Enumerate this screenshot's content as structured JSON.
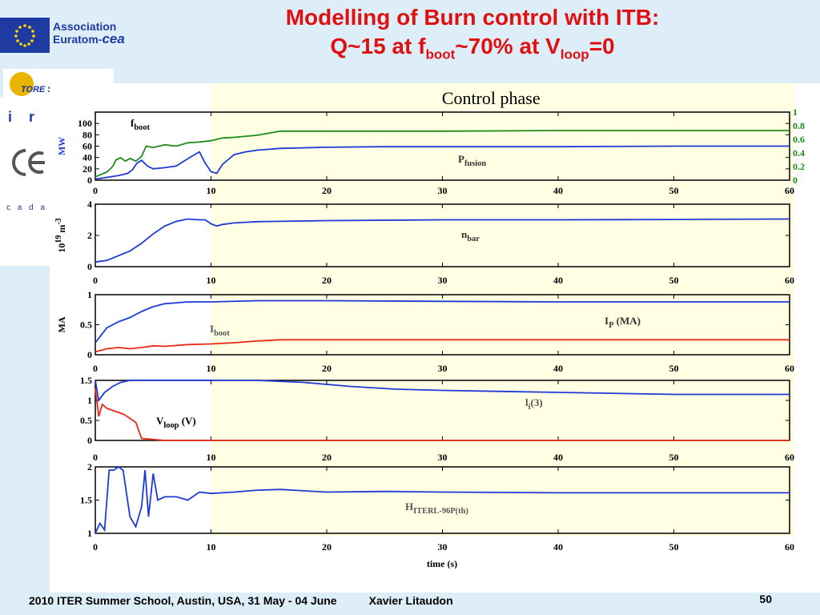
{
  "header": {
    "title_line1": "Modelling of Burn control with ITB:",
    "title_line2_a": "Q~15 at f",
    "title_line2_sub1": "boot",
    "title_line2_b": "~70%  at V",
    "title_line2_sub2": "loop",
    "title_line2_c": "=0"
  },
  "logos": {
    "association": "Association",
    "euratom": "Euratom-",
    "cea": "cea",
    "tore_supra": "TORE SUPRA",
    "irfm": "i r f",
    "cadarache": "c a d a r a"
  },
  "footer": {
    "event": "2010 ITER Summer School, Austin, USA,  31 May - 04 June",
    "author": "Xavier Litaudon",
    "slide_number": "50"
  },
  "colors": {
    "blue": "#1f3ad6",
    "green": "#1e8a1e",
    "red": "#e82a14",
    "control_band": "#ffffe4",
    "title": "#e01010"
  },
  "chart_data": {
    "type": "line",
    "annotation": "Control phase",
    "control_phase_start": 10,
    "xlabel": "time (s)",
    "xlim": [
      0,
      60
    ],
    "xticks": [
      0,
      10,
      20,
      30,
      40,
      50,
      60
    ],
    "panels": [
      {
        "ylabel": "MW",
        "ylim": [
          0,
          120
        ],
        "yticks": [
          0,
          20,
          40,
          60,
          80,
          100
        ],
        "ylim_right": [
          0,
          1
        ],
        "yticks_right": [
          "0",
          "0.2",
          "0.4",
          "0.6",
          "0.8",
          "1"
        ],
        "series": [
          {
            "name": "f",
            "name_sub": "boot",
            "color": "green",
            "axis": "right",
            "x": [
              0,
              1,
              1.5,
              1.8,
              2.2,
              2.6,
              3,
              3.5,
              4,
              4.4,
              5,
              6,
              7,
              8,
              9,
              10,
              11,
              12,
              14,
              16,
              20,
              30,
              40,
              50,
              60
            ],
            "y": [
              0.05,
              0.12,
              0.2,
              0.3,
              0.33,
              0.28,
              0.32,
              0.28,
              0.35,
              0.5,
              0.48,
              0.52,
              0.5,
              0.55,
              0.56,
              0.58,
              0.62,
              0.63,
              0.66,
              0.72,
              0.72,
              0.72,
              0.73,
              0.73,
              0.73
            ]
          },
          {
            "name": "P",
            "name_sub": "fusion",
            "color": "blue",
            "axis": "left",
            "x": [
              0,
              1,
              2,
              2.8,
              3.2,
              3.6,
              4,
              4.5,
              5,
              6,
              7,
              8,
              9,
              9.5,
              10,
              10.5,
              11,
              12,
              13,
              14,
              16,
              18,
              20,
              25,
              30,
              40,
              50,
              60
            ],
            "y": [
              2,
              5,
              8,
              12,
              18,
              30,
              35,
              25,
              20,
              22,
              25,
              38,
              50,
              30,
              15,
              12,
              28,
              45,
              50,
              53,
              56,
              57,
              58,
              59,
              59,
              59,
              60,
              60
            ]
          }
        ]
      },
      {
        "ylabel": "10",
        "ylabel_sup": "19",
        "ylabel_tail": " m",
        "ylabel_sup2": "-3",
        "ylim": [
          0,
          4
        ],
        "yticks": [
          0,
          2,
          4
        ],
        "series": [
          {
            "name": "n",
            "name_sub": "bar",
            "color": "blue",
            "x": [
              0,
              1,
              2,
              3,
              4,
              5,
              6,
              7,
              8,
              9,
              9.5,
              10,
              10.5,
              11,
              12,
              14,
              16,
              20,
              30,
              40,
              50,
              60
            ],
            "y": [
              0.3,
              0.4,
              0.7,
              1.0,
              1.5,
              2.1,
              2.6,
              2.9,
              3.05,
              3.0,
              3.0,
              2.75,
              2.6,
              2.7,
              2.8,
              2.88,
              2.9,
              2.95,
              3.0,
              3.0,
              3.02,
              3.05
            ]
          }
        ]
      },
      {
        "ylabel": "MA",
        "ylim": [
          0,
          1
        ],
        "yticks": [
          0,
          0.5,
          1
        ],
        "series": [
          {
            "name": "I",
            "name_sub": "P",
            "name_tail": " (MA)",
            "color": "blue",
            "x": [
              0,
              1,
              2,
              3,
              4,
              5,
              6,
              8,
              10,
              14,
              20,
              30,
              40,
              50,
              60
            ],
            "y": [
              0.2,
              0.45,
              0.55,
              0.62,
              0.72,
              0.8,
              0.85,
              0.88,
              0.88,
              0.9,
              0.9,
              0.89,
              0.88,
              0.88,
              0.88
            ]
          },
          {
            "name": "I",
            "name_sub": "boot",
            "color": "red",
            "x": [
              0,
              1,
              2,
              3,
              4,
              5,
              6,
              8,
              10,
              12,
              14,
              16,
              20,
              30,
              40,
              50,
              60
            ],
            "y": [
              0.05,
              0.1,
              0.12,
              0.1,
              0.12,
              0.15,
              0.14,
              0.17,
              0.18,
              0.2,
              0.23,
              0.25,
              0.25,
              0.25,
              0.25,
              0.25,
              0.25
            ]
          }
        ]
      },
      {
        "ylim": [
          0,
          1.5
        ],
        "yticks": [
          0,
          0.5,
          1,
          1.5
        ],
        "series": [
          {
            "name": "l",
            "name_sub": "i",
            "name_tail": "(3)",
            "color": "blue",
            "x": [
              0,
              0.3,
              0.8,
              1.5,
              2.2,
              3,
              10,
              14,
              18,
              22,
              26,
              30,
              40,
              50,
              60
            ],
            "y": [
              1.5,
              1.0,
              1.2,
              1.35,
              1.45,
              1.5,
              1.5,
              1.5,
              1.45,
              1.35,
              1.28,
              1.25,
              1.2,
              1.15,
              1.15
            ]
          },
          {
            "name": "V",
            "name_sub": "loop",
            "name_tail": " (V)",
            "color": "red",
            "x": [
              0,
              0.3,
              0.6,
              1,
              1.5,
              2,
              2.5,
              3,
              3.5,
              4,
              6,
              10,
              20,
              30,
              40,
              50,
              60
            ],
            "y": [
              1.3,
              0.6,
              0.9,
              0.8,
              0.75,
              0.7,
              0.65,
              0.55,
              0.45,
              0.05,
              0,
              0,
              0,
              0,
              0,
              0,
              0
            ]
          }
        ]
      },
      {
        "ylim": [
          1,
          2
        ],
        "yticks": [
          1,
          1.5,
          2
        ],
        "series": [
          {
            "name": "H",
            "name_sub": "ITERL-96P(th)",
            "color": "blue",
            "x": [
              0,
              0.4,
              0.8,
              1.2,
              1.6,
              2,
              2.4,
              3,
              3.5,
              4,
              4.3,
              4.6,
              5,
              5.4,
              6,
              7,
              8,
              9,
              10,
              12,
              14,
              16,
              18,
              20,
              25,
              30,
              40,
              50,
              60
            ],
            "y": [
              1.0,
              1.15,
              1.05,
              1.95,
              1.95,
              2.0,
              1.95,
              1.25,
              1.1,
              1.4,
              1.95,
              1.25,
              1.9,
              1.5,
              1.55,
              1.55,
              1.5,
              1.62,
              1.6,
              1.62,
              1.65,
              1.66,
              1.64,
              1.62,
              1.63,
              1.62,
              1.61,
              1.61,
              1.61
            ]
          }
        ]
      }
    ]
  }
}
